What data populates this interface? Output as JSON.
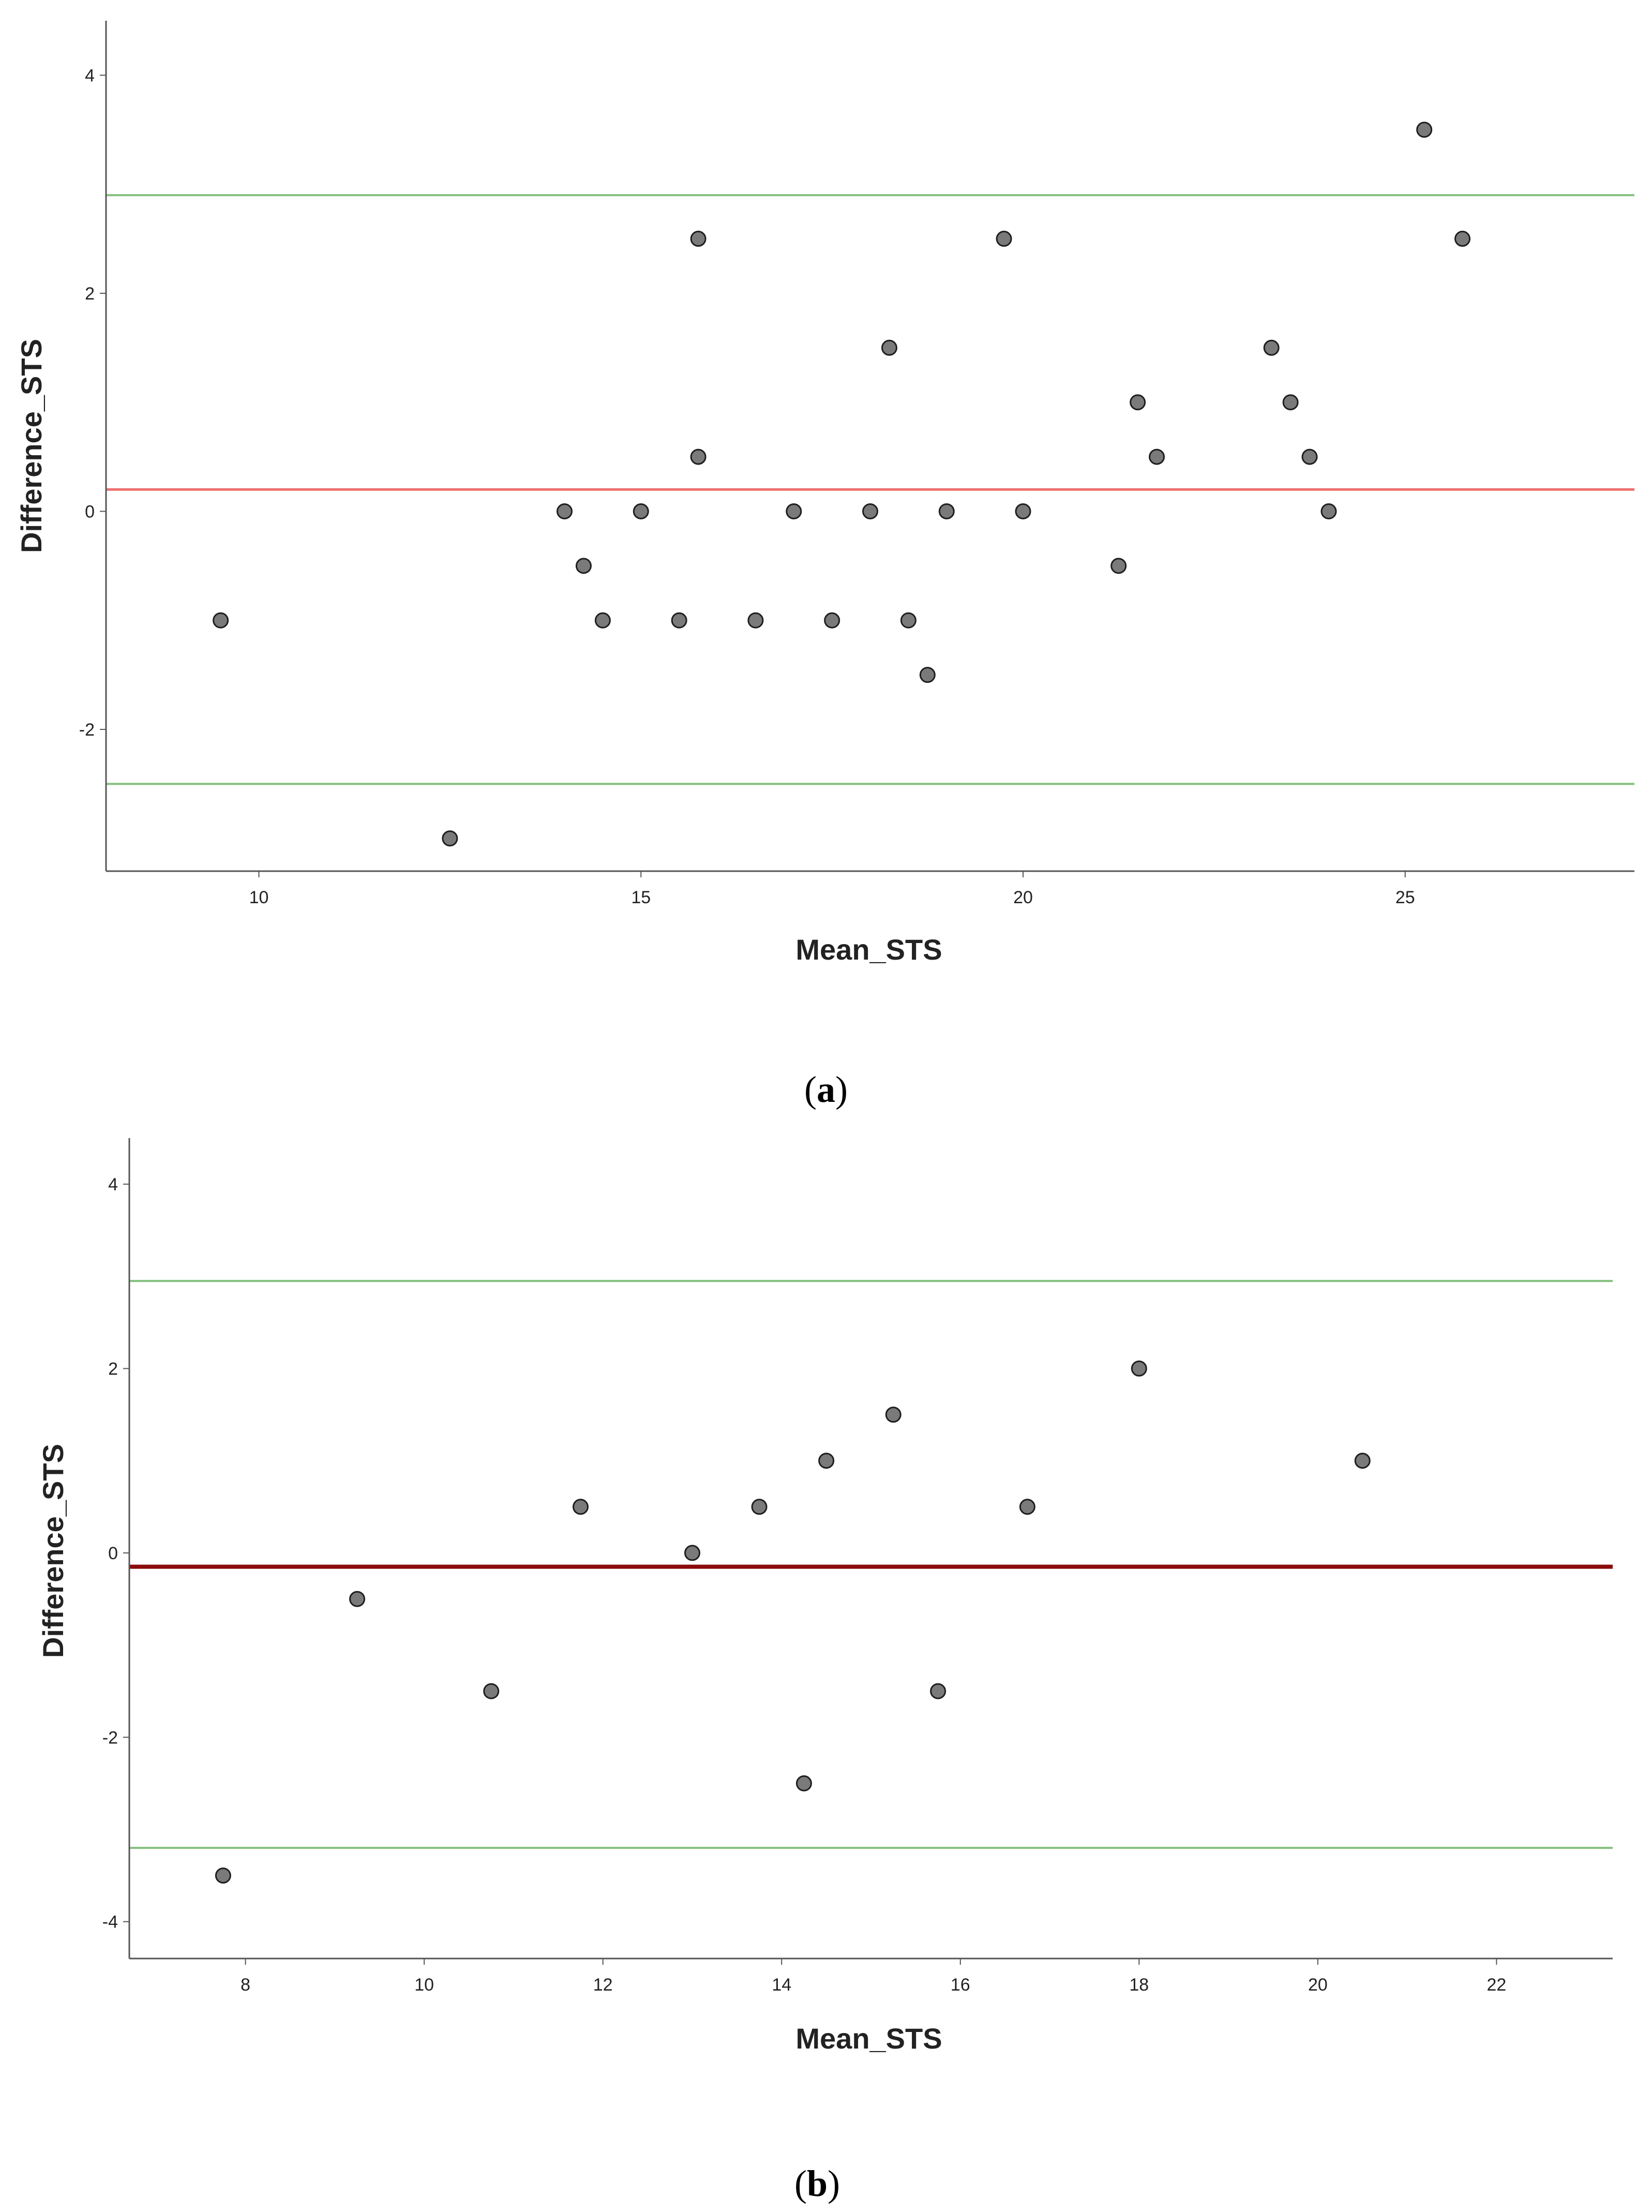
{
  "chart_data": [
    {
      "type": "scatter",
      "panel_label": "a",
      "xlabel": "Mean_STS",
      "ylabel": "Difference_STS",
      "xlim": [
        8,
        28
      ],
      "ylim": [
        -3.3,
        4.5
      ],
      "xticks": [
        10,
        15,
        20,
        25
      ],
      "yticks": [
        -2,
        0,
        2,
        4
      ],
      "reference_lines": [
        {
          "name": "upper-limit-of-agreement",
          "value": 2.9,
          "color": "#82c07c",
          "width": 4
        },
        {
          "name": "mean-difference",
          "value": 0.2,
          "color": "#f07070",
          "width": 5
        },
        {
          "name": "lower-limit-of-agreement",
          "value": -2.5,
          "color": "#82c07c",
          "width": 4
        }
      ],
      "points": [
        [
          9.5,
          -1
        ],
        [
          12.5,
          -3
        ],
        [
          14,
          0
        ],
        [
          14.25,
          -0.5
        ],
        [
          14.5,
          -1
        ],
        [
          15,
          0
        ],
        [
          15.5,
          -1
        ],
        [
          15.75,
          2.5
        ],
        [
          15.75,
          0.5
        ],
        [
          16.5,
          -1
        ],
        [
          17,
          0
        ],
        [
          17.5,
          -1
        ],
        [
          18,
          0
        ],
        [
          18.25,
          1.5
        ],
        [
          18.5,
          -1
        ],
        [
          18.75,
          -1.5
        ],
        [
          19,
          0
        ],
        [
          19.75,
          2.5
        ],
        [
          20,
          0
        ],
        [
          21.25,
          -0.5
        ],
        [
          21.5,
          1
        ],
        [
          21.75,
          0.5
        ],
        [
          23.25,
          1.5
        ],
        [
          23.5,
          1
        ],
        [
          23.75,
          0.5
        ],
        [
          24,
          0
        ],
        [
          25.25,
          3.5
        ],
        [
          25.75,
          2.5
        ]
      ]
    },
    {
      "type": "scatter",
      "panel_label": "b",
      "xlabel": "Mean_STS",
      "ylabel": "Difference_STS",
      "xlim": [
        6.7,
        23.3
      ],
      "ylim": [
        -4.4,
        4.5
      ],
      "xticks": [
        8,
        10,
        12,
        14,
        16,
        18,
        20,
        22
      ],
      "yticks": [
        -4,
        -2,
        0,
        2,
        4
      ],
      "reference_lines": [
        {
          "name": "upper-limit-of-agreement",
          "value": 2.95,
          "color": "#82c07c",
          "width": 4
        },
        {
          "name": "mean-difference",
          "value": -0.15,
          "color": "#8b0a0a",
          "width": 8
        },
        {
          "name": "lower-limit-of-agreement",
          "value": -3.2,
          "color": "#82c07c",
          "width": 4
        }
      ],
      "points": [
        [
          7.75,
          -3.5
        ],
        [
          9.25,
          -0.5
        ],
        [
          10.75,
          -1.5
        ],
        [
          11.75,
          0.5
        ],
        [
          13,
          0
        ],
        [
          13.75,
          0.5
        ],
        [
          14.25,
          -2.5
        ],
        [
          14.5,
          1
        ],
        [
          15.25,
          1.5
        ],
        [
          15.75,
          -1.5
        ],
        [
          16.75,
          0.5
        ],
        [
          18,
          2
        ],
        [
          20.5,
          1
        ]
      ]
    }
  ]
}
